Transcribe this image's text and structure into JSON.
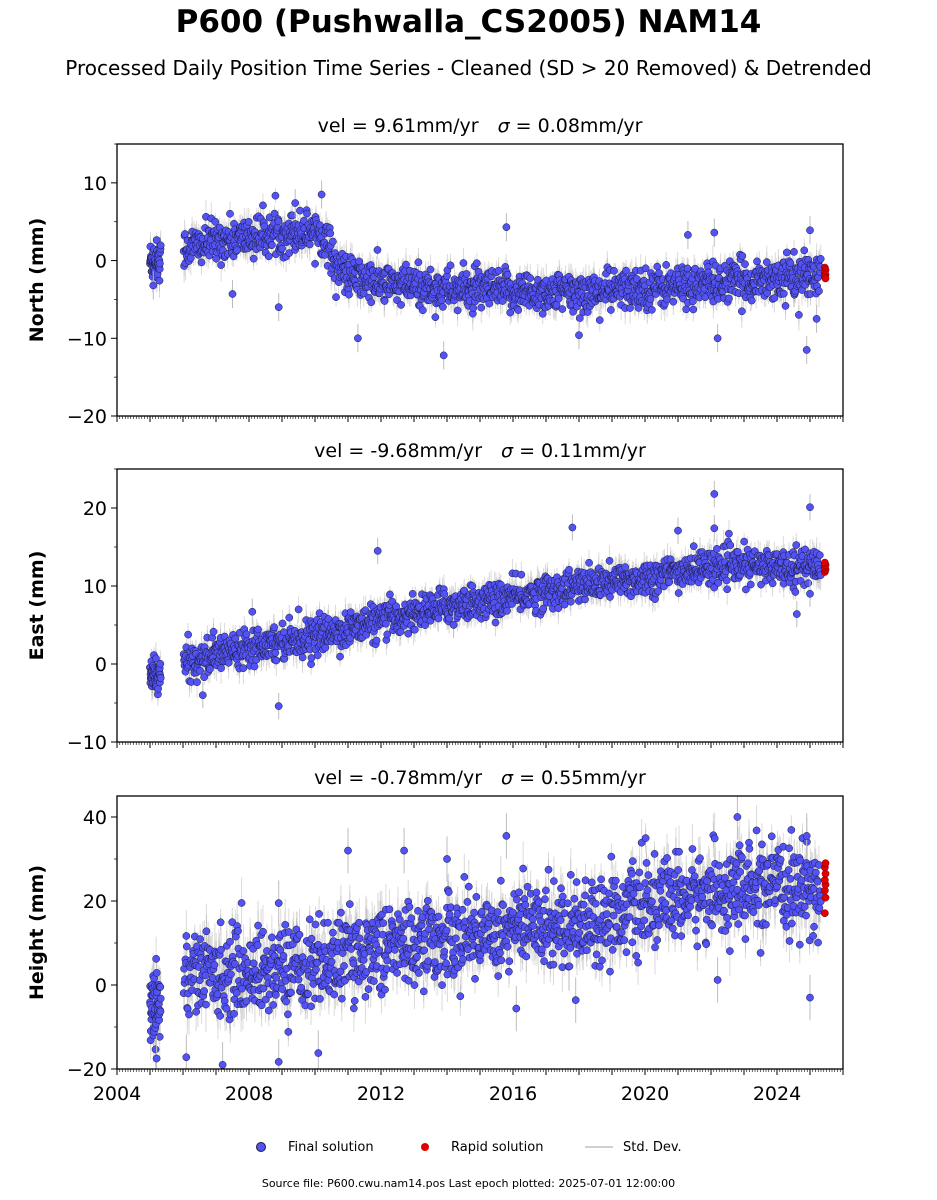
{
  "title": "P600 (Pushwalla_CS2005) NAM14",
  "subtitle": "Processed Daily Position Time Series - Cleaned (SD > 20 Removed) & Detrended",
  "legend": {
    "final": "Final solution",
    "rapid": "Rapid solution",
    "std": "Std. Dev."
  },
  "footer": "Source file: P600.cwu.nam14.pos  Last epoch plotted: 2025-07-01 12:00:00",
  "colors": {
    "final_fill": "#5252f5",
    "final_edge": "#1a1a3a",
    "rapid_fill": "#e00000",
    "std_dev": "#bdbdbd"
  },
  "chart_data": {
    "type": "scatter",
    "x_ticks": [
      "2004",
      "2008",
      "2012",
      "2016",
      "2020",
      "2024"
    ],
    "xlim": [
      2004.0,
      2026.0
    ],
    "series_labels": [
      "Final solution",
      "Rapid solution",
      "Std. Dev."
    ],
    "panels": [
      {
        "ylabel": "North (mm)",
        "vel_text": "vel = 9.61mm/yr",
        "sigma_text": " = 0.08mm/yr",
        "ylim": [
          -20,
          15
        ],
        "y_ticks": [
          10,
          0,
          -10,
          -20
        ],
        "trend": [
          [
            2005.0,
            0
          ],
          [
            2005.3,
            0
          ],
          [
            2006.0,
            1.5
          ],
          [
            2007.0,
            2.5
          ],
          [
            2008.0,
            3.0
          ],
          [
            2009.0,
            3.5
          ],
          [
            2010.0,
            4.0
          ],
          [
            2010.3,
            3.0
          ],
          [
            2010.7,
            -1.0
          ],
          [
            2011.0,
            -2.0
          ],
          [
            2012.0,
            -3.0
          ],
          [
            2014.0,
            -3.7
          ],
          [
            2016.0,
            -4.0
          ],
          [
            2018.0,
            -4.2
          ],
          [
            2020.0,
            -3.5
          ],
          [
            2022.0,
            -3.0
          ],
          [
            2024.0,
            -2.2
          ],
          [
            2025.4,
            -2.0
          ]
        ],
        "noise": 1.3,
        "stdev": 1.5,
        "outliers": [
          [
            2005.1,
            -3.2
          ],
          [
            2007.5,
            -4.3
          ],
          [
            2008.9,
            -6.0
          ],
          [
            2009.4,
            7.4
          ],
          [
            2010.2,
            8.5
          ],
          [
            2011.3,
            -10.0
          ],
          [
            2013.9,
            -12.2
          ],
          [
            2015.8,
            4.3
          ],
          [
            2018.0,
            -9.6
          ],
          [
            2021.3,
            3.3
          ],
          [
            2022.1,
            3.6
          ],
          [
            2022.2,
            -10.0
          ],
          [
            2024.9,
            -11.5
          ],
          [
            2025.0,
            3.9
          ],
          [
            2025.2,
            -7.5
          ]
        ],
        "rapid": [
          -0.9,
          -1.2,
          -1.6,
          -1.8,
          -2.1,
          -2.3
        ]
      },
      {
        "ylabel": "East (mm)",
        "vel_text": "vel = -9.68mm/yr",
        "sigma_text": " = 0.11mm/yr",
        "ylim": [
          -10,
          25
        ],
        "y_ticks": [
          20,
          10,
          0,
          -10
        ],
        "trend": [
          [
            2005.0,
            -1.5
          ],
          [
            2005.3,
            -1.5
          ],
          [
            2006.0,
            0
          ],
          [
            2008.0,
            2.5
          ],
          [
            2010.0,
            3.5
          ],
          [
            2012.0,
            5.5
          ],
          [
            2014.0,
            7.5
          ],
          [
            2016.0,
            8.5
          ],
          [
            2018.0,
            10.0
          ],
          [
            2020.0,
            11.0
          ],
          [
            2022.0,
            12.5
          ],
          [
            2024.0,
            12.5
          ],
          [
            2025.4,
            12.5
          ]
        ],
        "noise": 1.1,
        "stdev": 1.4,
        "outliers": [
          [
            2006.6,
            -4.0
          ],
          [
            2008.1,
            6.7
          ],
          [
            2008.9,
            -5.4
          ],
          [
            2011.9,
            14.5
          ],
          [
            2014.2,
            5.0
          ],
          [
            2017.8,
            17.5
          ],
          [
            2021.0,
            17.1
          ],
          [
            2022.1,
            21.8
          ],
          [
            2022.1,
            17.4
          ],
          [
            2024.6,
            6.4
          ],
          [
            2025.0,
            20.1
          ],
          [
            2025.0,
            9.0
          ]
        ],
        "rapid": [
          11.8,
          12.1,
          12.4,
          12.7,
          13.0
        ]
      },
      {
        "ylabel": "Height (mm)",
        "vel_text": "vel = -0.78mm/yr",
        "sigma_text": " = 0.55mm/yr",
        "ylim": [
          -20,
          45
        ],
        "y_ticks": [
          40,
          20,
          0,
          -20
        ],
        "trend": [
          [
            2005.0,
            -4
          ],
          [
            2005.3,
            -4
          ],
          [
            2006.0,
            3
          ],
          [
            2008.0,
            3
          ],
          [
            2010.0,
            5
          ],
          [
            2012.0,
            9
          ],
          [
            2014.0,
            11
          ],
          [
            2016.0,
            14
          ],
          [
            2018.0,
            15
          ],
          [
            2020.0,
            19
          ],
          [
            2022.0,
            22
          ],
          [
            2024.0,
            23
          ],
          [
            2025.4,
            23
          ]
        ],
        "noise": 5.0,
        "stdev": 4.5,
        "outliers": [
          [
            2005.2,
            -17.5
          ],
          [
            2006.1,
            -17.2
          ],
          [
            2007.2,
            -19.0
          ],
          [
            2008.9,
            -18.3
          ],
          [
            2008.9,
            19.5
          ],
          [
            2010.1,
            -16.2
          ],
          [
            2011.0,
            32.0
          ],
          [
            2012.7,
            32.0
          ],
          [
            2014.0,
            30.0
          ],
          [
            2015.8,
            35.5
          ],
          [
            2016.1,
            -5.6
          ],
          [
            2017.9,
            -3.6
          ],
          [
            2022.2,
            1.2
          ],
          [
            2022.8,
            40.0
          ],
          [
            2024.9,
            35.5
          ],
          [
            2025.0,
            -3.0
          ]
        ],
        "rapid": [
          17.1,
          20.8,
          22.5,
          23.9,
          25.0,
          26.5,
          28.0,
          29.0
        ]
      }
    ]
  }
}
